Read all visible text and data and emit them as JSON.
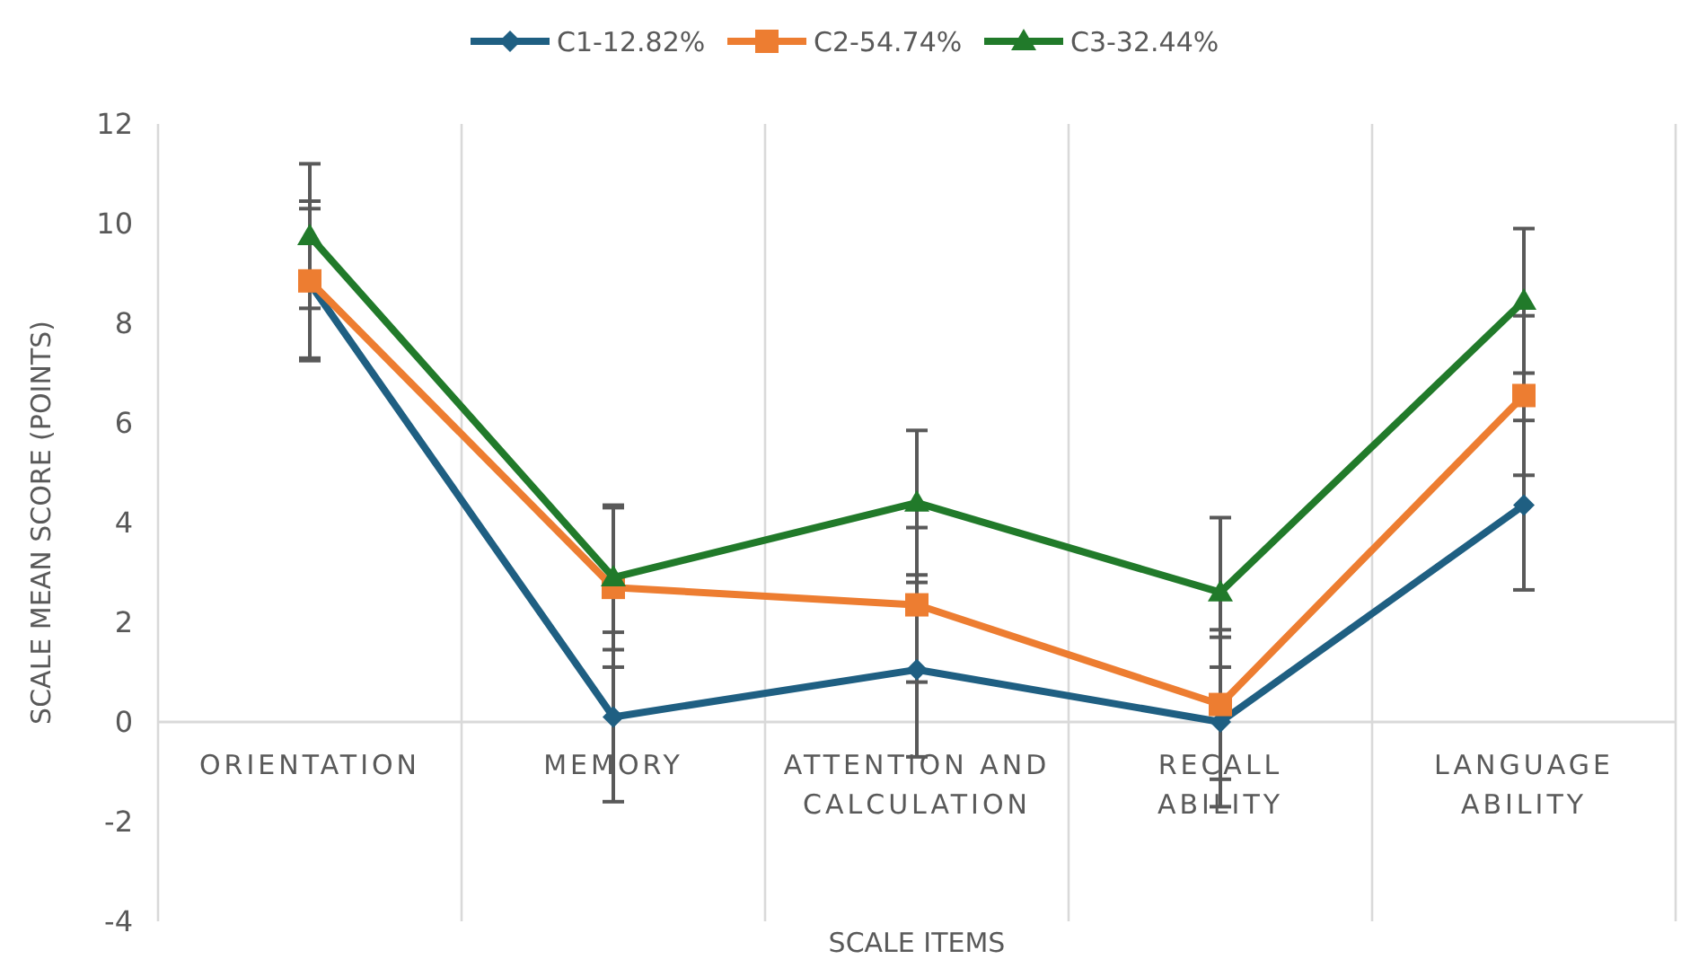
{
  "chart_data": {
    "type": "line",
    "xlabel": "SCALE ITEMS",
    "ylabel": "SCALE MEAN SCORE (POINTS)",
    "categories": [
      "ORIENTATION",
      "MEMORY",
      "ATTENTION AND CALCULATION",
      "RECALL ABILITY",
      "LANGUAGE ABILITY"
    ],
    "ylim": [
      -4,
      12
    ],
    "yticks": [
      -4,
      -2,
      0,
      2,
      4,
      6,
      8,
      10,
      12
    ],
    "grid": "x",
    "legend": "top",
    "series": [
      {
        "name": "C1-12.82%",
        "color": "#1f5f82",
        "marker": "diamond",
        "values": [
          8.8,
          0.1,
          1.05,
          0.0,
          4.35
        ],
        "errors": [
          1.5,
          1.7,
          1.75,
          1.7,
          1.7
        ]
      },
      {
        "name": "C2-54.74%",
        "color": "#ed7d31",
        "marker": "square",
        "values": [
          8.85,
          2.7,
          2.35,
          0.35,
          6.55
        ],
        "errors": [
          1.6,
          1.6,
          1.55,
          1.5,
          1.6
        ]
      },
      {
        "name": "C3-32.44%",
        "color": "#217a2a",
        "marker": "triangle",
        "values": [
          9.75,
          2.9,
          4.4,
          2.6,
          8.45
        ],
        "errors": [
          1.45,
          1.45,
          1.45,
          1.5,
          1.45
        ]
      }
    ]
  }
}
